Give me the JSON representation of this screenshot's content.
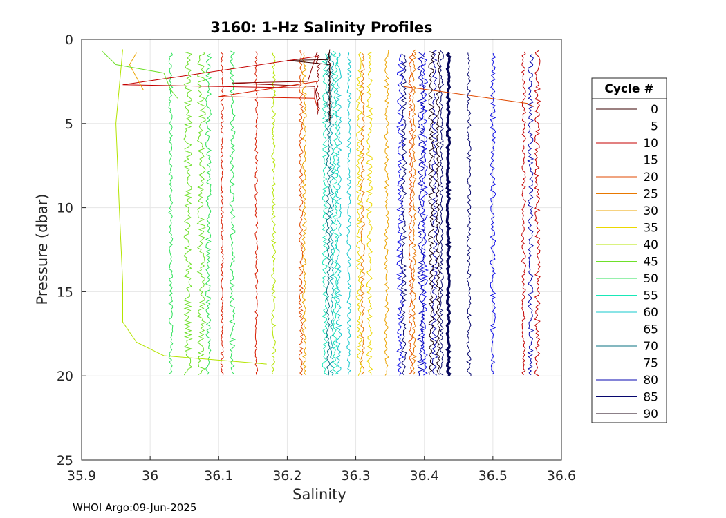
{
  "chart_data": {
    "type": "line",
    "title": "3160: 1-Hz Salinity Profiles",
    "xlabel": "Salinity",
    "ylabel": "Pressure (dbar)",
    "xlim": [
      35.9,
      36.6
    ],
    "ylim": [
      0,
      25
    ],
    "y_reversed": true,
    "grid": true,
    "x_ticks": [
      "35.9",
      "36",
      "36.1",
      "36.2",
      "36.3",
      "36.4",
      "36.5",
      "36.6"
    ],
    "y_ticks": [
      "0",
      "5",
      "10",
      "15",
      "20",
      "25"
    ],
    "legend_title": "Cycle #",
    "legend_position": "right-outside",
    "legend": [
      {
        "label": "0",
        "color": "#3a0000"
      },
      {
        "label": "5",
        "color": "#8b0000"
      },
      {
        "label": "10",
        "color": "#c40000"
      },
      {
        "label": "15",
        "color": "#d81c00"
      },
      {
        "label": "20",
        "color": "#e04a00"
      },
      {
        "label": "25",
        "color": "#e87800"
      },
      {
        "label": "30",
        "color": "#eca400"
      },
      {
        "label": "35",
        "color": "#ecd800"
      },
      {
        "label": "40",
        "color": "#b4e400"
      },
      {
        "label": "45",
        "color": "#6ee02a"
      },
      {
        "label": "50",
        "color": "#2ee25a"
      },
      {
        "label": "55",
        "color": "#18e8b8"
      },
      {
        "label": "60",
        "color": "#16c8cc"
      },
      {
        "label": "65",
        "color": "#0aa4ae"
      },
      {
        "label": "70",
        "color": "#0a7080"
      },
      {
        "label": "75",
        "color": "#1010e8"
      },
      {
        "label": "80",
        "color": "#0a0ab0"
      },
      {
        "label": "85",
        "color": "#06066e"
      },
      {
        "label": "90",
        "color": "#1a0010"
      }
    ],
    "series": [
      {
        "cycle": "0",
        "color": "#3a0000",
        "x": [
          36.262,
          36.26,
          36.2,
          36.262,
          36.262
        ],
        "y": [
          0.6,
          1.2,
          1.25,
          1.5,
          4.9
        ]
      },
      {
        "cycle": "5",
        "color": "#8b0000",
        "x": [
          36.243,
          36.23,
          36.12,
          36.24,
          36.245
        ],
        "y": [
          0.8,
          2.5,
          2.6,
          2.8,
          4.0
        ]
      },
      {
        "cycle": "10",
        "color": "#c40000",
        "x": [
          36.245,
          35.96,
          36.24,
          36.24
        ],
        "y": [
          1.0,
          2.7,
          2.9,
          3.6
        ]
      },
      {
        "cycle": "15",
        "color": "#d81c00",
        "x": [
          36.245,
          36.1,
          36.24,
          36.245
        ],
        "y": [
          2.5,
          3.4,
          3.5,
          4.2
        ]
      },
      {
        "cycle": "20",
        "color": "#e04a00",
        "x": [
          36.37,
          36.55,
          36.56
        ],
        "y": [
          2.8,
          3.8,
          4.0
        ]
      },
      {
        "cycle": "30",
        "color": "#eca400",
        "x": [
          35.98,
          35.97,
          35.99
        ],
        "y": [
          0.8,
          1.5,
          3.0
        ]
      },
      {
        "cycle": "40",
        "color": "#b4e400",
        "x": [
          35.96,
          35.95,
          35.955,
          35.96,
          35.96,
          35.98,
          36.02,
          36.17
        ],
        "y": [
          0.6,
          5.0,
          10.0,
          14.5,
          16.8,
          18.0,
          18.8,
          19.3
        ]
      },
      {
        "cycle": "45",
        "color": "#6ee02a",
        "x": [
          35.93,
          35.95,
          36.02,
          36.03,
          36.04
        ],
        "y": [
          0.7,
          1.5,
          2.0,
          3.0,
          3.5
        ]
      }
    ],
    "profiles": [
      {
        "cycle": "0",
        "color": "#3a0000",
        "x": 36.262,
        "y_end": 4.9,
        "amp": 0.002
      },
      {
        "cycle": "5",
        "color": "#8b0000",
        "x": 36.245,
        "y_end": 4.5,
        "amp": 0.003
      },
      {
        "cycle": "10",
        "color": "#c40000",
        "x": 36.565,
        "y_end": 20.0,
        "amp": 0.004
      },
      {
        "cycle": "10",
        "color": "#c40000",
        "x": 36.545,
        "y_end": 20.0,
        "amp": 0.003
      },
      {
        "cycle": "15",
        "color": "#d81c00",
        "x": 36.155,
        "y_end": 20.0,
        "amp": 0.002
      },
      {
        "cycle": "15",
        "color": "#d81c00",
        "x": 36.105,
        "y_end": 20.0,
        "amp": 0.002
      },
      {
        "cycle": "20",
        "color": "#e04a00",
        "x": 36.22,
        "y_end": 20.0,
        "amp": 0.003
      },
      {
        "cycle": "20",
        "color": "#e04a00",
        "x": 36.38,
        "y_end": 20.0,
        "amp": 0.003
      },
      {
        "cycle": "25",
        "color": "#e87800",
        "x": 36.31,
        "y_end": 20.0,
        "amp": 0.003
      },
      {
        "cycle": "25",
        "color": "#e87800",
        "x": 36.385,
        "y_end": 20.0,
        "amp": 0.003
      },
      {
        "cycle": "30",
        "color": "#eca400",
        "x": 36.225,
        "y_end": 20.0,
        "amp": 0.003
      },
      {
        "cycle": "30",
        "color": "#eca400",
        "x": 36.345,
        "y_end": 20.0,
        "amp": 0.003
      },
      {
        "cycle": "35",
        "color": "#ecd800",
        "x": 36.305,
        "y_end": 20.0,
        "amp": 0.004
      },
      {
        "cycle": "35",
        "color": "#ecd800",
        "x": 36.32,
        "y_end": 20.0,
        "amp": 0.004
      },
      {
        "cycle": "40",
        "color": "#b4e400",
        "x": 36.18,
        "y_end": 20.0,
        "amp": 0.003
      },
      {
        "cycle": "45",
        "color": "#6ee02a",
        "x": 36.055,
        "y_end": 20.0,
        "amp": 0.006
      },
      {
        "cycle": "45",
        "color": "#6ee02a",
        "x": 36.075,
        "y_end": 20.0,
        "amp": 0.006
      },
      {
        "cycle": "50",
        "color": "#2ee25a",
        "x": 36.03,
        "y_end": 20.0,
        "amp": 0.003
      },
      {
        "cycle": "50",
        "color": "#2ee25a",
        "x": 36.12,
        "y_end": 20.0,
        "amp": 0.004
      },
      {
        "cycle": "50",
        "color": "#2ee25a",
        "x": 36.085,
        "y_end": 20.0,
        "amp": 0.004
      },
      {
        "cycle": "55",
        "color": "#18e8b8",
        "x": 36.255,
        "y_end": 20.0,
        "amp": 0.004
      },
      {
        "cycle": "55",
        "color": "#18e8b8",
        "x": 36.27,
        "y_end": 20.0,
        "amp": 0.004
      },
      {
        "cycle": "60",
        "color": "#16c8cc",
        "x": 36.275,
        "y_end": 20.0,
        "amp": 0.004
      },
      {
        "cycle": "60",
        "color": "#16c8cc",
        "x": 36.29,
        "y_end": 20.0,
        "amp": 0.003
      },
      {
        "cycle": "65",
        "color": "#0aa4ae",
        "x": 36.265,
        "y_end": 20.0,
        "amp": 0.003
      },
      {
        "cycle": "70",
        "color": "#0a7080",
        "x": 36.26,
        "y_end": 20.0,
        "amp": 0.003
      },
      {
        "cycle": "75",
        "color": "#1010e8",
        "x": 36.365,
        "y_end": 20.0,
        "amp": 0.005
      },
      {
        "cycle": "75",
        "color": "#1010e8",
        "x": 36.4,
        "y_end": 20.0,
        "amp": 0.005
      },
      {
        "cycle": "75",
        "color": "#1010e8",
        "x": 36.5,
        "y_end": 20.0,
        "amp": 0.004
      },
      {
        "cycle": "80",
        "color": "#0a0ab0",
        "x": 36.395,
        "y_end": 20.0,
        "amp": 0.005
      },
      {
        "cycle": "80",
        "color": "#0a0ab0",
        "x": 36.415,
        "y_end": 20.0,
        "amp": 0.004
      },
      {
        "cycle": "80",
        "color": "#0a0ab0",
        "x": 36.555,
        "y_end": 20.0,
        "amp": 0.004
      },
      {
        "cycle": "85",
        "color": "#06066e",
        "x": 36.37,
        "y_end": 20.0,
        "amp": 0.004
      },
      {
        "cycle": "85",
        "color": "#06066e",
        "x": 36.425,
        "y_end": 20.0,
        "amp": 0.003
      },
      {
        "cycle": "85",
        "color": "#06066e",
        "x": 36.465,
        "y_end": 20.0,
        "amp": 0.003
      },
      {
        "cycle": "90",
        "color": "#1a0010",
        "x": 36.41,
        "y_end": 20.0,
        "amp": 0.004
      },
      {
        "cycle": "90",
        "color": "#1a0010",
        "x": 36.42,
        "y_end": 20.0,
        "amp": 0.003
      },
      {
        "cycle": "90",
        "color": "#06065a",
        "x": 36.435,
        "y_end": 20.0,
        "amp": 0.002,
        "bold": true
      }
    ]
  },
  "footer": "WHOI Argo:09-Jun-2025"
}
